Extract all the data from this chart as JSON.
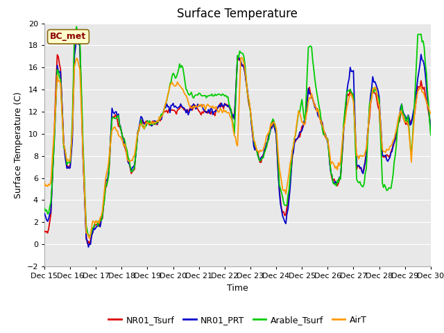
{
  "title": "Surface Temperature",
  "ylabel": "Surface Temperature (C)",
  "xlabel": "Time",
  "annotation": "BC_met",
  "ylim": [
    -2,
    20
  ],
  "xlim": [
    0,
    360
  ],
  "x_tick_labels": [
    "Dec 15",
    "Dec 16",
    "Dec 17",
    "Dec 18",
    "Dec 19",
    "Dec 20",
    "Dec 21",
    "Dec 22",
    "Dec 23",
    "Dec 24",
    "Dec 25",
    "Dec 26",
    "Dec 27",
    "Dec 28",
    "Dec 29",
    "Dec 30"
  ],
  "x_tick_positions": [
    0,
    24,
    48,
    72,
    96,
    120,
    144,
    168,
    192,
    216,
    240,
    264,
    288,
    312,
    336,
    360
  ],
  "y_ticks": [
    -2,
    0,
    2,
    4,
    6,
    8,
    10,
    12,
    14,
    16,
    18,
    20
  ],
  "colors": {
    "NR01_Tsurf": "#dd0000",
    "NR01_PRT": "#0000cc",
    "Arable_Tsurf": "#00cc00",
    "AirT": "#ff9900"
  },
  "legend_entries": [
    "NR01_Tsurf",
    "NR01_PRT",
    "Arable_Tsurf",
    "AirT"
  ],
  "fig_bg": "#ffffff",
  "plot_bg": "#e8e8e8",
  "title_fontsize": 12,
  "label_fontsize": 9,
  "tick_fontsize": 8
}
